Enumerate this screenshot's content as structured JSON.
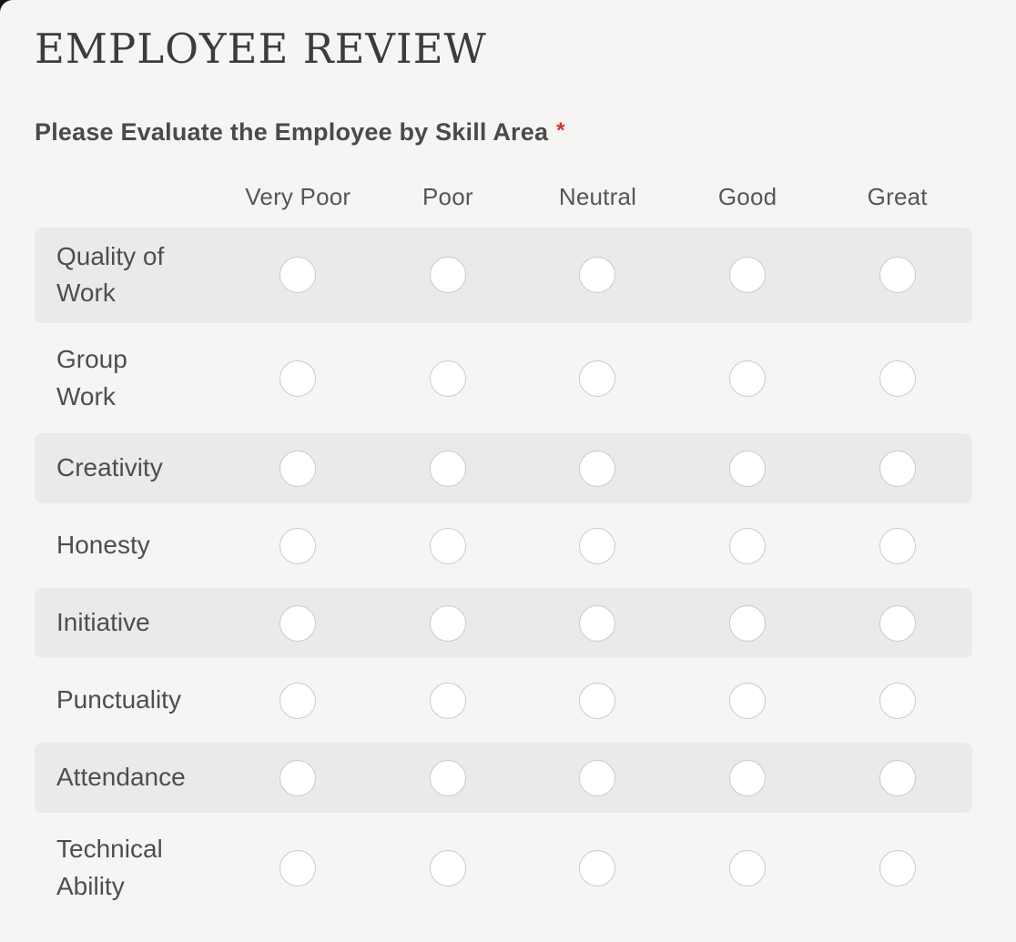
{
  "page": {
    "title": "EMPLOYEE REVIEW"
  },
  "question": {
    "label": "Please Evaluate the Employee by Skill Area",
    "required_marker": "*"
  },
  "matrix": {
    "columns": [
      "Very Poor",
      "Poor",
      "Neutral",
      "Good",
      "Great"
    ],
    "rows": [
      {
        "label": "Quality of\nWork",
        "selected": null
      },
      {
        "label": "Group\nWork",
        "selected": null
      },
      {
        "label": "Creativity",
        "selected": null
      },
      {
        "label": "Honesty",
        "selected": null
      },
      {
        "label": "Initiative",
        "selected": null
      },
      {
        "label": "Punctuality",
        "selected": null
      },
      {
        "label": "Attendance",
        "selected": null
      },
      {
        "label": "Technical\nAbility",
        "selected": null
      }
    ]
  },
  "colors": {
    "page_background": "#f6f5f4",
    "row_stripe": "#ebeaea",
    "title_text": "#3d3c3c",
    "body_text": "#4d4e50",
    "header_text": "#55565a",
    "required_asterisk": "#d0342c",
    "radio_fill": "#ffffff",
    "radio_border": "#cbcbcb"
  }
}
